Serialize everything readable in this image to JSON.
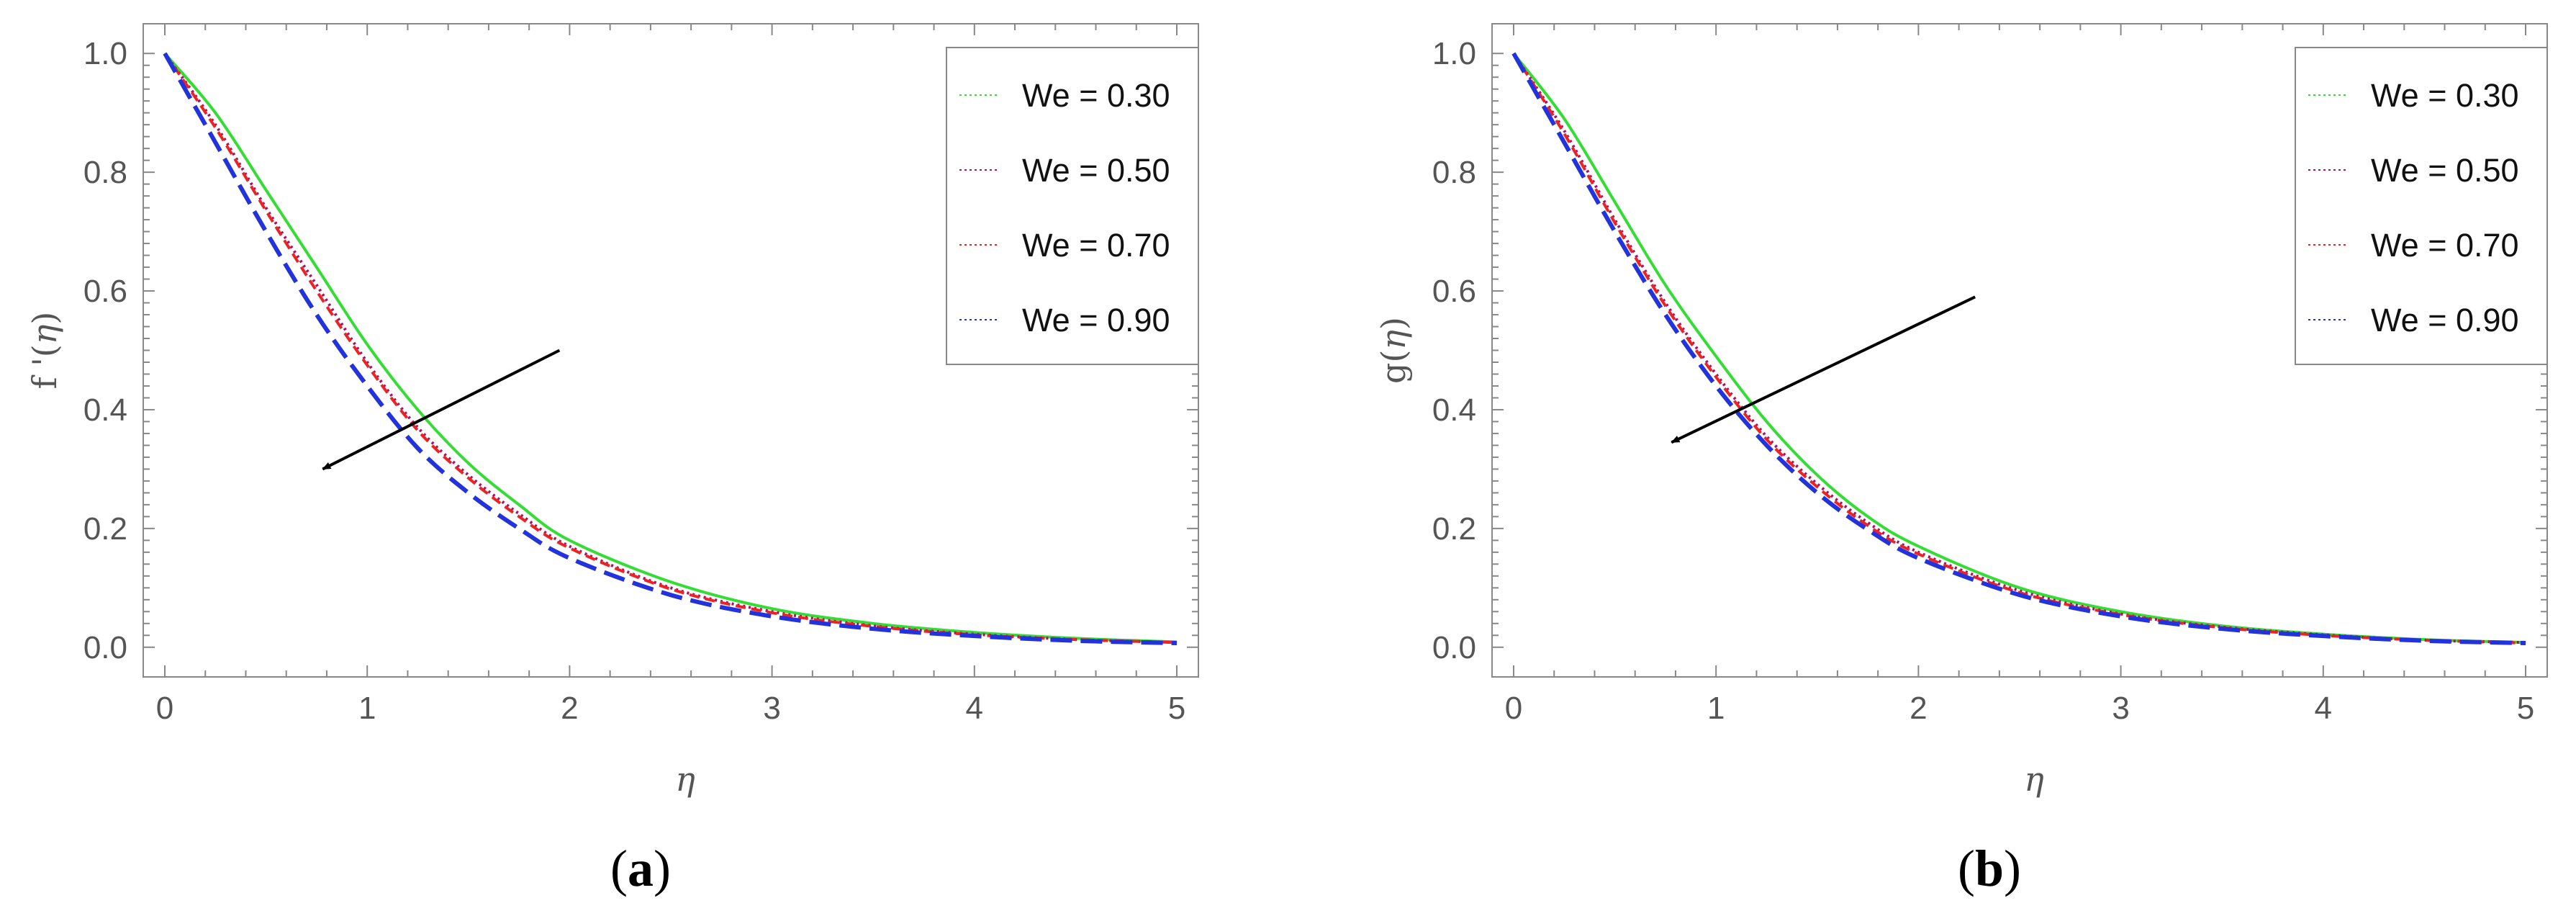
{
  "chart_data": [
    {
      "type": "line",
      "panel": "a",
      "caption": {
        "open": "(",
        "letter": "a",
        "close": ")"
      },
      "ylabel": {
        "prefix": "f '(",
        "var": "η",
        "suffix": ")"
      },
      "xlabel": "η",
      "xlim": [
        0,
        5
      ],
      "ylim": [
        -0.05,
        1.05
      ],
      "xticks": [
        "0",
        "1",
        "2",
        "3",
        "4",
        "5"
      ],
      "yticks": [
        "0.0",
        "0.2",
        "0.4",
        "0.6",
        "0.8",
        "1.0"
      ],
      "legend_position": "top-right",
      "arrow": {
        "from": [
          1.95,
          0.5
        ],
        "to": [
          0.78,
          0.3
        ],
        "meaning": "increasing We"
      },
      "series": [
        {
          "name": "We = 0.30",
          "color": "#33dd33",
          "dash": "solid",
          "x": [
            0,
            0.25,
            0.5,
            0.75,
            1,
            1.25,
            1.5,
            1.75,
            2,
            2.5,
            3,
            3.5,
            4,
            4.5,
            5
          ],
          "y": [
            1.0,
            0.9,
            0.77,
            0.64,
            0.51,
            0.4,
            0.31,
            0.24,
            0.18,
            0.11,
            0.065,
            0.04,
            0.025,
            0.015,
            0.009
          ]
        },
        {
          "name": "We = 0.50",
          "color": "#aa1166",
          "dash": "dot",
          "x": [
            0,
            0.25,
            0.5,
            0.75,
            1,
            1.25,
            1.5,
            1.75,
            2,
            2.5,
            3,
            3.5,
            4,
            4.5,
            5
          ],
          "y": [
            1.0,
            0.88,
            0.74,
            0.61,
            0.48,
            0.37,
            0.29,
            0.225,
            0.17,
            0.1,
            0.06,
            0.036,
            0.022,
            0.013,
            0.008
          ]
        },
        {
          "name": "We = 0.70",
          "color": "#ee2222",
          "dash": "dash-short",
          "x": [
            0,
            0.25,
            0.5,
            0.75,
            1,
            1.25,
            1.5,
            1.75,
            2,
            2.5,
            3,
            3.5,
            4,
            4.5,
            5
          ],
          "y": [
            1.0,
            0.875,
            0.735,
            0.6,
            0.475,
            0.365,
            0.285,
            0.22,
            0.167,
            0.098,
            0.058,
            0.035,
            0.021,
            0.013,
            0.008
          ]
        },
        {
          "name": "We = 0.90",
          "color": "#2233dd",
          "dash": "dash-long",
          "x": [
            0,
            0.25,
            0.5,
            0.75,
            1,
            1.25,
            1.5,
            1.75,
            2,
            2.5,
            3,
            3.5,
            4,
            4.5,
            5
          ],
          "y": [
            1.0,
            0.85,
            0.7,
            0.56,
            0.44,
            0.335,
            0.26,
            0.2,
            0.15,
            0.088,
            0.052,
            0.031,
            0.019,
            0.011,
            0.007
          ]
        }
      ]
    },
    {
      "type": "line",
      "panel": "b",
      "caption": {
        "open": "(",
        "letter": "b",
        "close": ")"
      },
      "ylabel": {
        "prefix": "g(",
        "var": "η",
        "suffix": ")"
      },
      "xlabel": "η",
      "xlim": [
        0,
        5
      ],
      "ylim": [
        -0.05,
        1.05
      ],
      "xticks": [
        "0",
        "1",
        "2",
        "3",
        "4",
        "5"
      ],
      "yticks": [
        "0.0",
        "0.2",
        "0.4",
        "0.6",
        "0.8",
        "1.0"
      ],
      "legend_position": "top-right",
      "arrow": {
        "from": [
          2.28,
          0.59
        ],
        "to": [
          0.78,
          0.345
        ],
        "meaning": "increasing We"
      },
      "series": [
        {
          "name": "We = 0.30",
          "color": "#33dd33",
          "dash": "solid",
          "x": [
            0,
            0.25,
            0.5,
            0.75,
            1,
            1.25,
            1.5,
            1.75,
            2,
            2.5,
            3,
            3.5,
            4,
            4.5,
            5
          ],
          "y": [
            1.0,
            0.89,
            0.75,
            0.61,
            0.49,
            0.38,
            0.29,
            0.22,
            0.17,
            0.1,
            0.06,
            0.036,
            0.022,
            0.013,
            0.008
          ]
        },
        {
          "name": "We = 0.50",
          "color": "#aa1166",
          "dash": "dot",
          "x": [
            0,
            0.25,
            0.5,
            0.75,
            1,
            1.25,
            1.5,
            1.75,
            2,
            2.5,
            3,
            3.5,
            4,
            4.5,
            5
          ],
          "y": [
            1.0,
            0.87,
            0.72,
            0.58,
            0.46,
            0.355,
            0.275,
            0.21,
            0.16,
            0.095,
            0.056,
            0.034,
            0.021,
            0.012,
            0.008
          ]
        },
        {
          "name": "We = 0.70",
          "color": "#ee2222",
          "dash": "dash-short",
          "x": [
            0,
            0.25,
            0.5,
            0.75,
            1,
            1.25,
            1.5,
            1.75,
            2,
            2.5,
            3,
            3.5,
            4,
            4.5,
            5
          ],
          "y": [
            1.0,
            0.865,
            0.715,
            0.575,
            0.455,
            0.35,
            0.27,
            0.205,
            0.157,
            0.092,
            0.055,
            0.033,
            0.02,
            0.012,
            0.007
          ]
        },
        {
          "name": "We = 0.90",
          "color": "#2233dd",
          "dash": "dash-long",
          "x": [
            0,
            0.25,
            0.5,
            0.75,
            1,
            1.25,
            1.5,
            1.75,
            2,
            2.5,
            3,
            3.5,
            4,
            4.5,
            5
          ],
          "y": [
            1.0,
            0.85,
            0.7,
            0.56,
            0.44,
            0.34,
            0.26,
            0.198,
            0.15,
            0.088,
            0.052,
            0.031,
            0.019,
            0.011,
            0.007
          ]
        }
      ]
    }
  ]
}
